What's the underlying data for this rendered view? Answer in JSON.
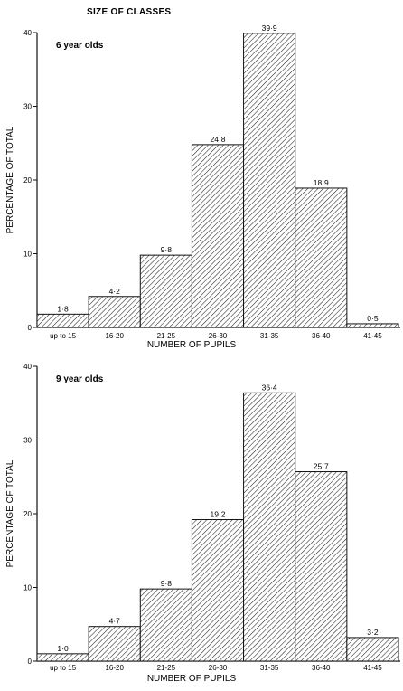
{
  "title": "SIZE OF CLASSES",
  "chart_data": [
    {
      "type": "bar",
      "panel_label": "6 year olds",
      "categories": [
        "up to 15",
        "16-20",
        "21-25",
        "26-30",
        "31-35",
        "36-40",
        "41-45"
      ],
      "values": [
        1.8,
        4.2,
        9.8,
        24.8,
        39.9,
        18.9,
        0.5
      ],
      "value_labels": [
        "1·8",
        "4·2",
        "9·8",
        "24·8",
        "39·9",
        "18·9",
        "0·5"
      ],
      "xlabel": "NUMBER OF PUPILS",
      "ylabel": "PERCENTAGE OF TOTAL",
      "ylim": [
        0,
        40
      ],
      "yticks": [
        0,
        10,
        20,
        30,
        40
      ],
      "fill": "diagonal hatch",
      "grid": false
    },
    {
      "type": "bar",
      "panel_label": "9 year olds",
      "categories": [
        "up to 15",
        "16-20",
        "21-25",
        "26-30",
        "31-35",
        "36-40",
        "41-45"
      ],
      "values": [
        1.0,
        4.7,
        9.8,
        19.2,
        36.4,
        25.7,
        3.2
      ],
      "value_labels": [
        "1·0",
        "4·7",
        "9·8",
        "19·2",
        "36·4",
        "25·7",
        "3·2"
      ],
      "xlabel": "NUMBER OF PUPILS",
      "ylabel": "PERCENTAGE OF TOTAL",
      "ylim": [
        0,
        40
      ],
      "yticks": [
        0,
        10,
        20,
        30,
        40
      ],
      "fill": "diagonal hatch",
      "grid": false
    }
  ]
}
